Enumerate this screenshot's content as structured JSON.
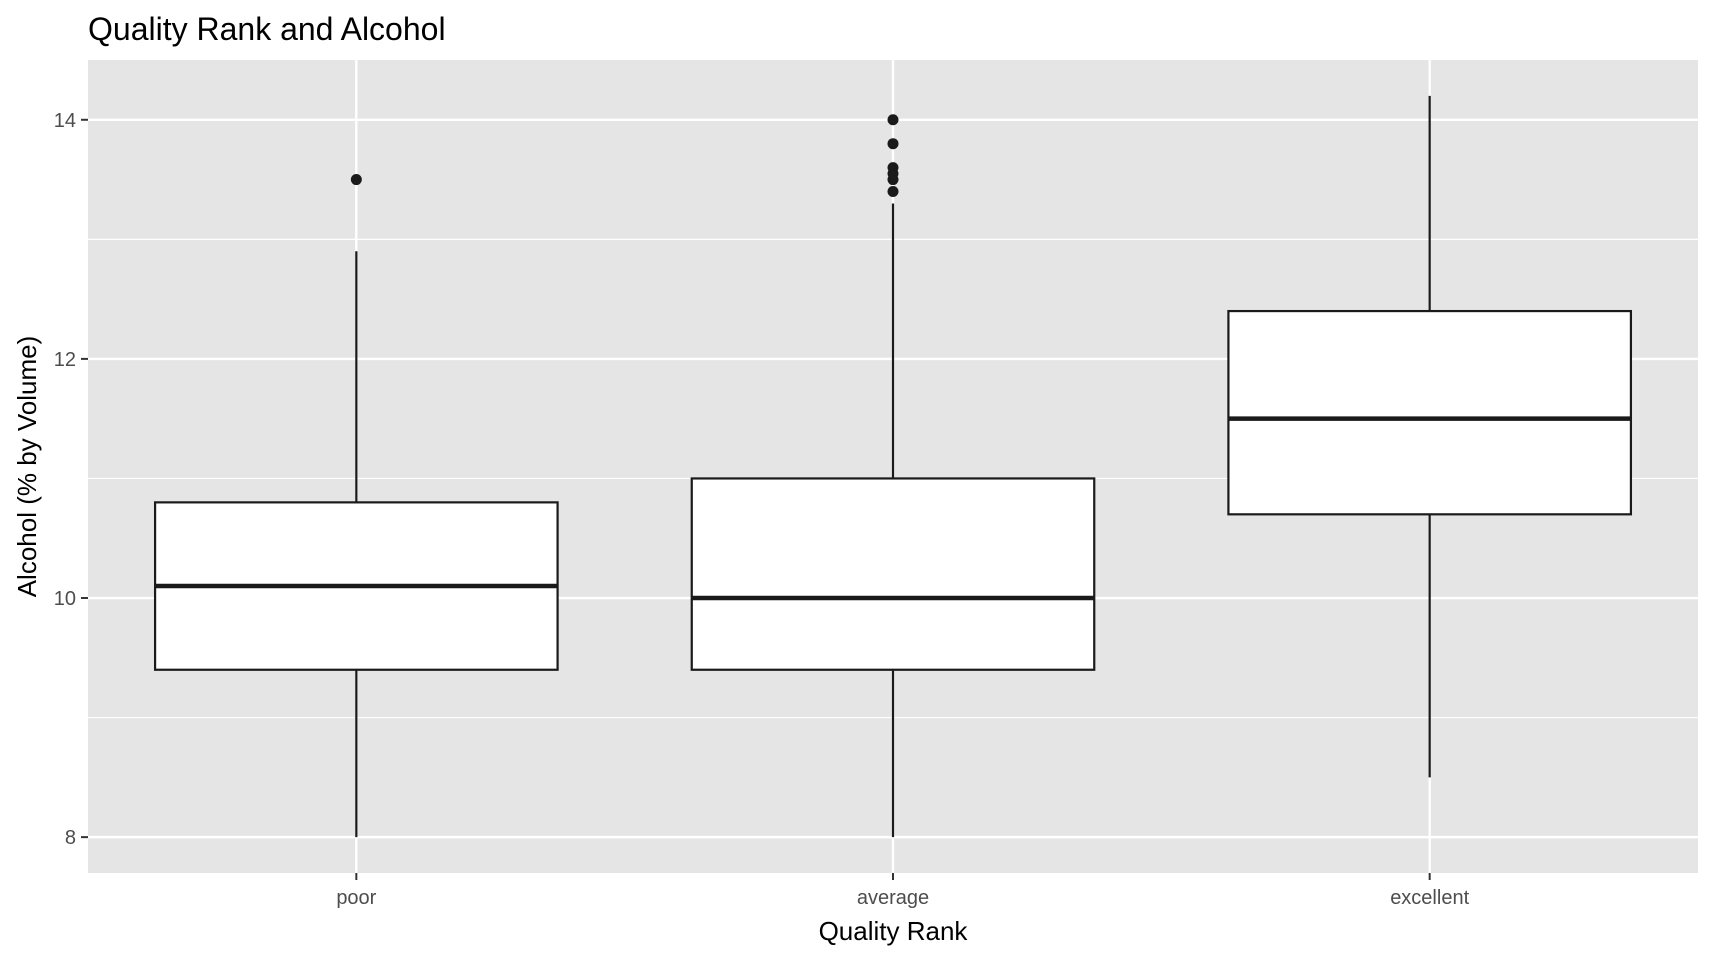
{
  "chart_data": {
    "type": "box",
    "title": "Quality Rank and Alcohol",
    "xlabel": "Quality Rank",
    "ylabel": "Alcohol (% by Volume)",
    "categories": [
      "poor",
      "average",
      "excellent"
    ],
    "ylim": [
      7.7,
      14.5
    ],
    "yticks": [
      8,
      10,
      12,
      14
    ],
    "grid": true,
    "boxes": [
      {
        "category": "poor",
        "whisker_low": 8.0,
        "q1": 9.4,
        "median": 10.1,
        "q3": 10.8,
        "whisker_high": 12.9,
        "outliers": [
          13.5
        ]
      },
      {
        "category": "average",
        "whisker_low": 8.0,
        "q1": 9.4,
        "median": 10.0,
        "q3": 11.0,
        "whisker_high": 13.3,
        "outliers": [
          13.4,
          13.5,
          13.55,
          13.6,
          13.8,
          14.0
        ]
      },
      {
        "category": "excellent",
        "whisker_low": 8.5,
        "q1": 10.7,
        "median": 11.5,
        "q3": 12.4,
        "whisker_high": 14.2,
        "outliers": []
      }
    ],
    "colors": {
      "panel_background": "#e5e5e5",
      "grid_line": "#ffffff",
      "box_fill": "#ffffff",
      "box_stroke": "#1a1a1a",
      "tick_label": "#4d4d4d"
    }
  }
}
